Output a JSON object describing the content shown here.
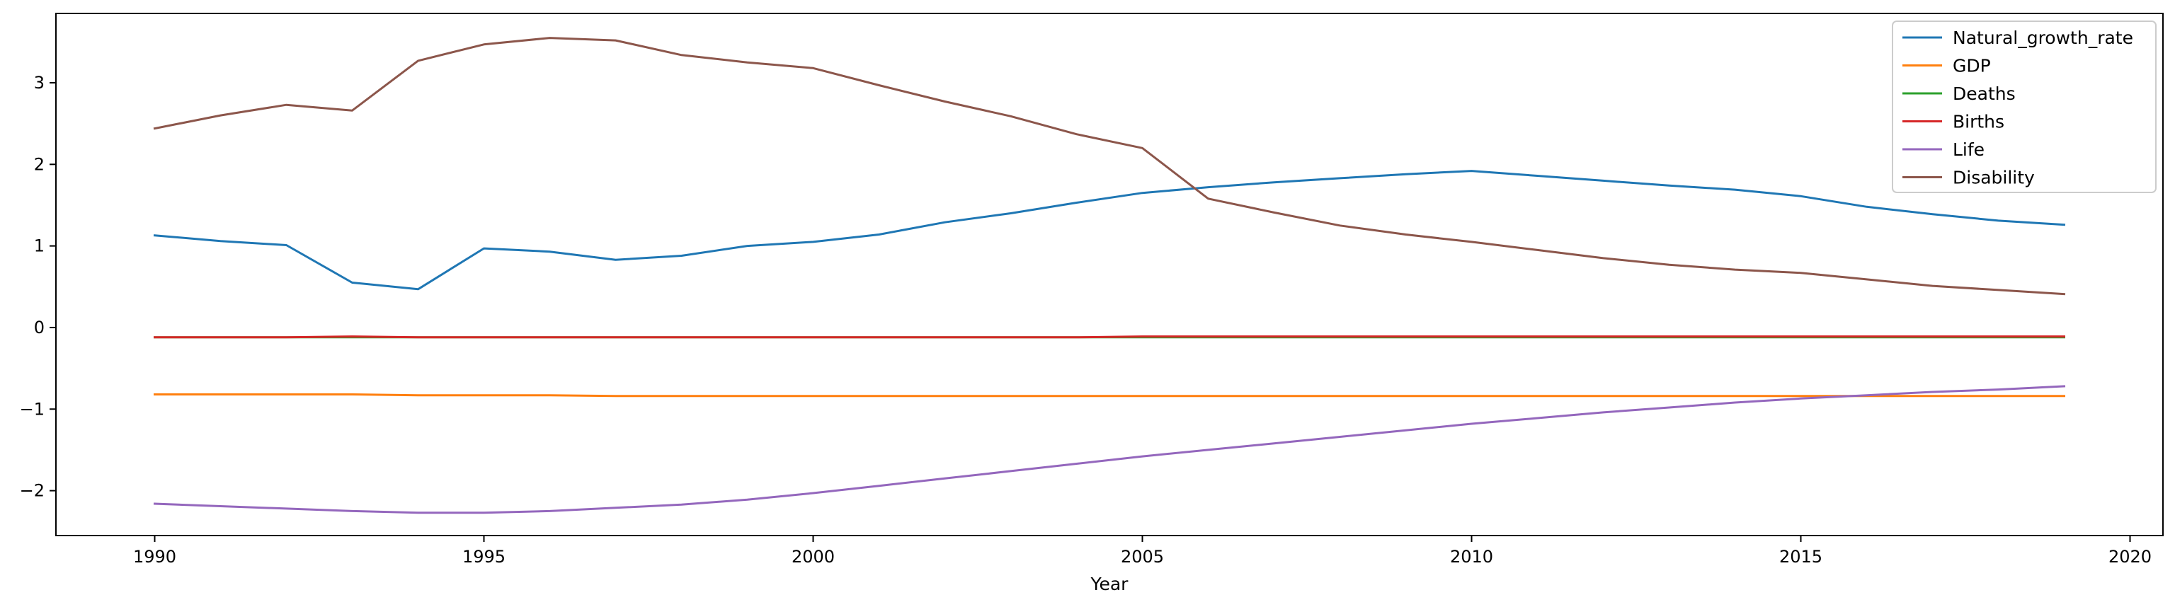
{
  "chart_data": {
    "type": "line",
    "xlabel": "Year",
    "ylabel": "",
    "xlim": [
      1988.5,
      2020.5
    ],
    "ylim": [
      -2.55,
      3.85
    ],
    "xticks": [
      1990,
      1995,
      2000,
      2005,
      2010,
      2015,
      2020
    ],
    "yticks": [
      -2,
      -1,
      0,
      1,
      2,
      3
    ],
    "grid": false,
    "legend_position": "top-right",
    "x": [
      1990,
      1991,
      1992,
      1993,
      1994,
      1995,
      1996,
      1997,
      1998,
      1999,
      2000,
      2001,
      2002,
      2003,
      2004,
      2005,
      2006,
      2007,
      2008,
      2009,
      2010,
      2011,
      2012,
      2013,
      2014,
      2015,
      2016,
      2017,
      2018,
      2019
    ],
    "series": [
      {
        "name": "Natural_growth_rate",
        "color": "#1f77b4",
        "values": [
          1.13,
          1.06,
          1.01,
          0.55,
          0.47,
          0.97,
          0.93,
          0.83,
          0.88,
          1.0,
          1.05,
          1.14,
          1.29,
          1.4,
          1.53,
          1.65,
          1.72,
          1.78,
          1.83,
          1.88,
          1.92,
          1.86,
          1.8,
          1.74,
          1.69,
          1.61,
          1.48,
          1.39,
          1.31,
          1.26
        ]
      },
      {
        "name": "GDP",
        "color": "#ff7f0e",
        "values": [
          -0.82,
          -0.82,
          -0.82,
          -0.82,
          -0.83,
          -0.83,
          -0.83,
          -0.84,
          -0.84,
          -0.84,
          -0.84,
          -0.84,
          -0.84,
          -0.84,
          -0.84,
          -0.84,
          -0.84,
          -0.84,
          -0.84,
          -0.84,
          -0.84,
          -0.84,
          -0.84,
          -0.84,
          -0.84,
          -0.84,
          -0.84,
          -0.84,
          -0.84,
          -0.84
        ]
      },
      {
        "name": "Deaths",
        "color": "#2ca02c",
        "values": [
          -0.12,
          -0.12,
          -0.12,
          -0.12,
          -0.12,
          -0.12,
          -0.12,
          -0.12,
          -0.12,
          -0.12,
          -0.12,
          -0.12,
          -0.12,
          -0.12,
          -0.12,
          -0.12,
          -0.12,
          -0.12,
          -0.12,
          -0.12,
          -0.12,
          -0.12,
          -0.12,
          -0.12,
          -0.12,
          -0.12,
          -0.12,
          -0.12,
          -0.12,
          -0.12
        ]
      },
      {
        "name": "Births",
        "color": "#d62728",
        "values": [
          -0.12,
          -0.12,
          -0.12,
          -0.11,
          -0.12,
          -0.12,
          -0.12,
          -0.12,
          -0.12,
          -0.12,
          -0.12,
          -0.12,
          -0.12,
          -0.12,
          -0.12,
          -0.11,
          -0.11,
          -0.11,
          -0.11,
          -0.11,
          -0.11,
          -0.11,
          -0.11,
          -0.11,
          -0.11,
          -0.11,
          -0.11,
          -0.11,
          -0.11,
          -0.11
        ]
      },
      {
        "name": "Life",
        "color": "#9467bd",
        "values": [
          -2.16,
          -2.19,
          -2.22,
          -2.25,
          -2.27,
          -2.27,
          -2.25,
          -2.21,
          -2.17,
          -2.11,
          -2.03,
          -1.94,
          -1.85,
          -1.76,
          -1.67,
          -1.58,
          -1.5,
          -1.42,
          -1.34,
          -1.26,
          -1.18,
          -1.11,
          -1.04,
          -0.98,
          -0.92,
          -0.87,
          -0.83,
          -0.79,
          -0.76,
          -0.72
        ]
      },
      {
        "name": "Disability",
        "color": "#8c564b",
        "values": [
          2.44,
          2.6,
          2.73,
          2.66,
          3.27,
          3.47,
          3.55,
          3.52,
          3.34,
          3.25,
          3.18,
          2.97,
          2.77,
          2.59,
          2.37,
          2.2,
          1.58,
          1.41,
          1.25,
          1.14,
          1.05,
          0.95,
          0.85,
          0.77,
          0.71,
          0.67,
          0.59,
          0.51,
          0.46,
          0.41
        ]
      }
    ]
  }
}
